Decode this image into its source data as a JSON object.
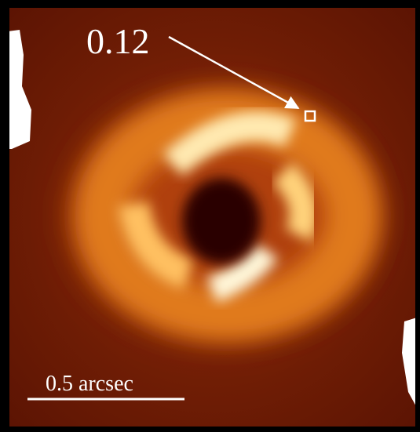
{
  "annotation": {
    "label": "0.12"
  },
  "scale_bar": {
    "label": "0.5 arcsec"
  }
}
